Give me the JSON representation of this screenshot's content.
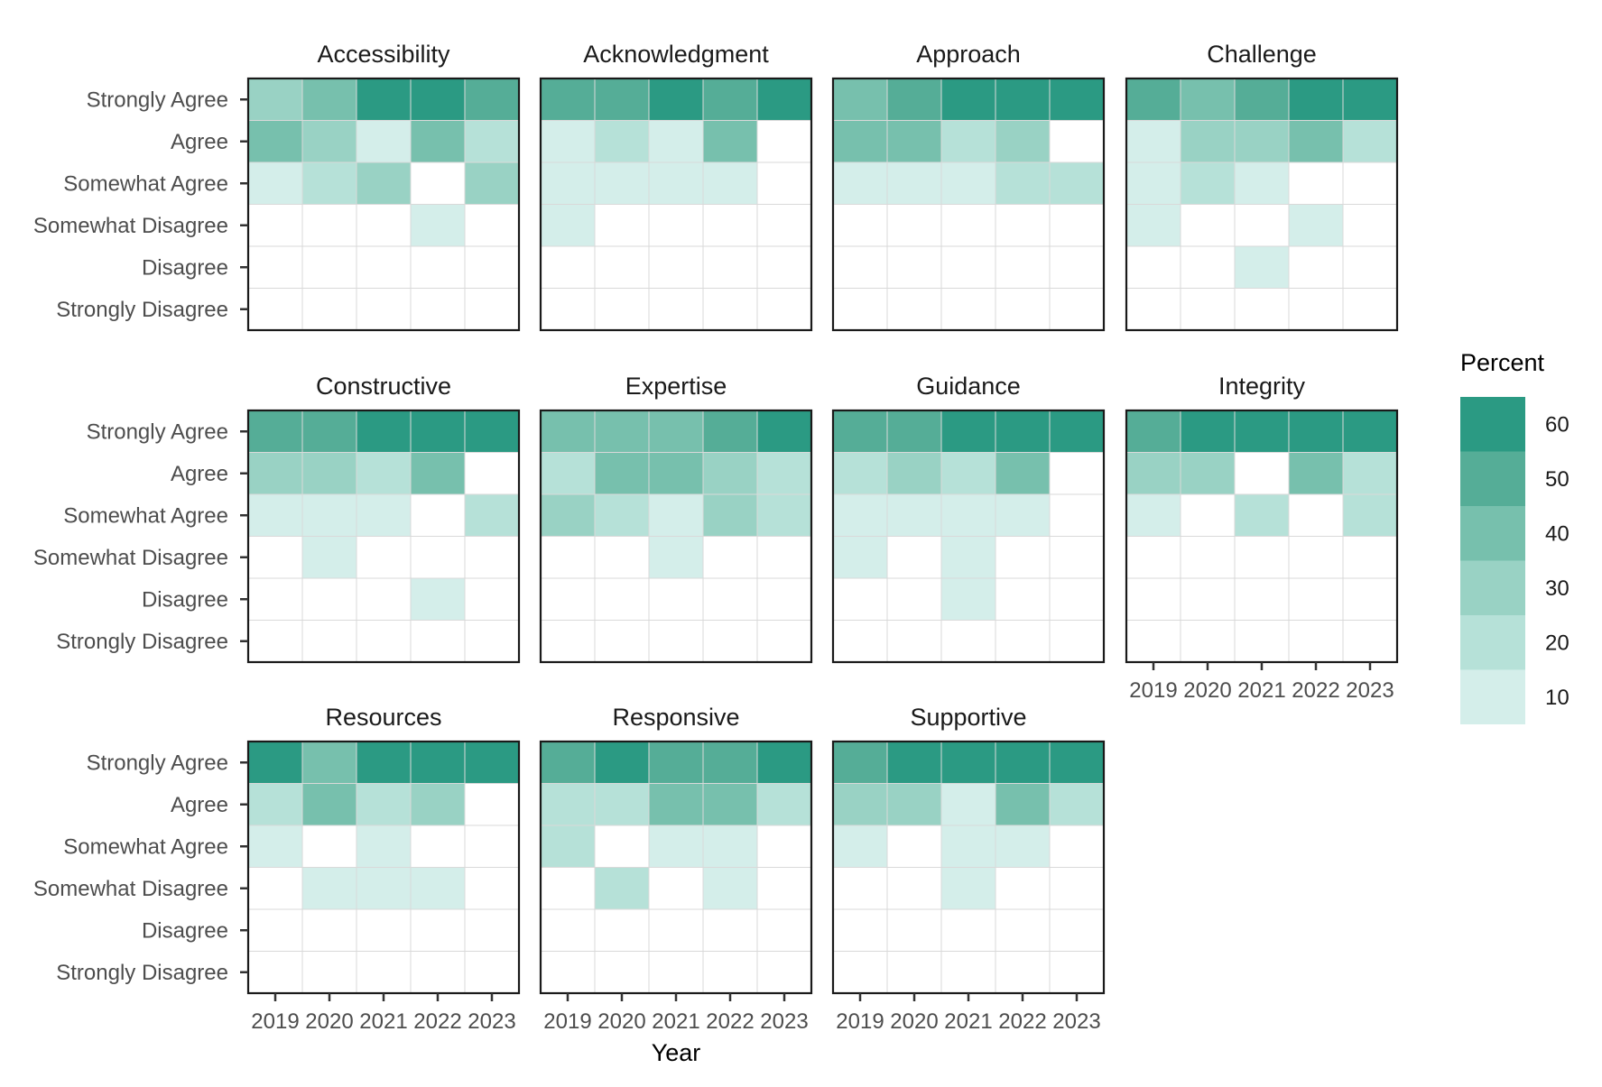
{
  "chart_data": {
    "type": "heatmap",
    "xlabel": "Year",
    "ylabel": "",
    "x": [
      "2019",
      "2020",
      "2021",
      "2022",
      "2023"
    ],
    "y": [
      "Strongly Agree",
      "Agree",
      "Somewhat Agree",
      "Somewhat Disagree",
      "Disagree",
      "Strongly Disagree"
    ],
    "fill_scale": {
      "title": "Percent",
      "binned": true,
      "breaks": [
        "10",
        "20",
        "30",
        "40",
        "50",
        "60"
      ],
      "bin_edges": [
        5,
        15,
        25,
        35,
        45,
        55,
        65
      ],
      "colors": [
        "#d4eeea",
        "#b6e1d8",
        "#99d2c4",
        "#77c0ad",
        "#55ad97",
        "#2b9a83"
      ],
      "na_color": "#ffffff"
    },
    "grid": true,
    "legend_position": "right",
    "facets": [
      {
        "title": "Accessibility",
        "values": [
          [
            30,
            40,
            60,
            60,
            50
          ],
          [
            40,
            30,
            10,
            40,
            20
          ],
          [
            10,
            20,
            30,
            null,
            30
          ],
          [
            null,
            null,
            null,
            10,
            null
          ],
          [
            null,
            null,
            null,
            null,
            null
          ],
          [
            null,
            null,
            null,
            null,
            null
          ]
        ]
      },
      {
        "title": "Acknowledgment",
        "values": [
          [
            50,
            50,
            60,
            50,
            60
          ],
          [
            10,
            20,
            10,
            40,
            null
          ],
          [
            10,
            10,
            10,
            10,
            null
          ],
          [
            10,
            null,
            null,
            null,
            null
          ],
          [
            null,
            null,
            null,
            null,
            null
          ],
          [
            null,
            null,
            null,
            null,
            null
          ]
        ]
      },
      {
        "title": "Approach",
        "values": [
          [
            40,
            50,
            60,
            60,
            60
          ],
          [
            40,
            40,
            20,
            30,
            null
          ],
          [
            10,
            10,
            10,
            20,
            20
          ],
          [
            null,
            null,
            null,
            null,
            null
          ],
          [
            null,
            null,
            null,
            null,
            null
          ],
          [
            null,
            null,
            null,
            null,
            null
          ]
        ]
      },
      {
        "title": "Challenge",
        "values": [
          [
            50,
            40,
            50,
            60,
            60
          ],
          [
            10,
            30,
            30,
            40,
            20
          ],
          [
            10,
            20,
            10,
            null,
            null
          ],
          [
            10,
            null,
            null,
            10,
            null
          ],
          [
            null,
            null,
            10,
            null,
            null
          ],
          [
            null,
            null,
            null,
            null,
            null
          ]
        ]
      },
      {
        "title": "Constructive",
        "values": [
          [
            50,
            50,
            60,
            60,
            60
          ],
          [
            30,
            30,
            20,
            40,
            null
          ],
          [
            10,
            10,
            10,
            null,
            20
          ],
          [
            null,
            10,
            null,
            null,
            null
          ],
          [
            null,
            null,
            null,
            10,
            null
          ],
          [
            null,
            null,
            null,
            null,
            null
          ]
        ]
      },
      {
        "title": "Expertise",
        "values": [
          [
            40,
            40,
            40,
            50,
            60
          ],
          [
            20,
            40,
            40,
            30,
            20
          ],
          [
            30,
            20,
            10,
            30,
            20
          ],
          [
            null,
            null,
            10,
            null,
            null
          ],
          [
            null,
            null,
            null,
            null,
            null
          ],
          [
            null,
            null,
            null,
            null,
            null
          ]
        ]
      },
      {
        "title": "Guidance",
        "values": [
          [
            50,
            50,
            60,
            60,
            60
          ],
          [
            20,
            30,
            20,
            40,
            null
          ],
          [
            10,
            10,
            10,
            10,
            null
          ],
          [
            10,
            null,
            10,
            null,
            null
          ],
          [
            null,
            null,
            10,
            null,
            null
          ],
          [
            null,
            null,
            null,
            null,
            null
          ]
        ]
      },
      {
        "title": "Integrity",
        "values": [
          [
            50,
            60,
            60,
            60,
            60
          ],
          [
            30,
            30,
            null,
            40,
            20
          ],
          [
            10,
            null,
            20,
            null,
            20
          ],
          [
            null,
            null,
            null,
            null,
            null
          ],
          [
            null,
            null,
            null,
            null,
            null
          ],
          [
            null,
            null,
            null,
            null,
            null
          ]
        ]
      },
      {
        "title": "Resources",
        "values": [
          [
            60,
            40,
            60,
            60,
            60
          ],
          [
            20,
            40,
            20,
            30,
            null
          ],
          [
            10,
            null,
            10,
            null,
            null
          ],
          [
            null,
            10,
            10,
            10,
            null
          ],
          [
            null,
            null,
            null,
            null,
            null
          ],
          [
            null,
            null,
            null,
            null,
            null
          ]
        ]
      },
      {
        "title": "Responsive",
        "values": [
          [
            50,
            60,
            50,
            50,
            60
          ],
          [
            20,
            20,
            40,
            40,
            20
          ],
          [
            20,
            null,
            10,
            10,
            null
          ],
          [
            null,
            20,
            null,
            10,
            null
          ],
          [
            null,
            null,
            null,
            null,
            null
          ],
          [
            null,
            null,
            null,
            null,
            null
          ]
        ]
      },
      {
        "title": "Supportive",
        "values": [
          [
            50,
            60,
            60,
            60,
            60
          ],
          [
            30,
            30,
            10,
            40,
            20
          ],
          [
            10,
            null,
            10,
            10,
            null
          ],
          [
            null,
            null,
            10,
            null,
            null
          ],
          [
            null,
            null,
            null,
            null,
            null
          ],
          [
            null,
            null,
            null,
            null,
            null
          ]
        ]
      }
    ]
  }
}
